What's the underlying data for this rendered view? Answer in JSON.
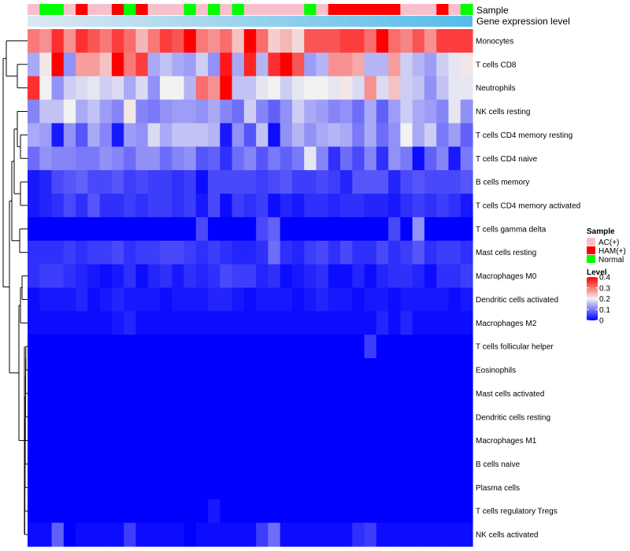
{
  "chart_data": {
    "type": "heatmap",
    "title": "",
    "legend_position": "right",
    "annotation_labels": {
      "sample": "Sample",
      "expression": "Gene expression level"
    },
    "rows": [
      "Monocytes",
      "T cells CD8",
      "Neutrophils",
      "NK cells resting",
      "T cells CD4 memory resting",
      "T cells CD4 naive",
      "B cells memory",
      "T cells CD4 memory activated",
      "T cells gamma delta",
      "Mast cells resting",
      "Macrophages M0",
      "Dendritic cells activated",
      "Macrophages M2",
      "T cells follicular helper",
      "Eosinophils",
      "Mast cells activated",
      "Dendritic cells resting",
      "Macrophages M1",
      "B cells naive",
      "Plasma cells",
      "T cells regulatory  Tregs",
      "NK cells activated"
    ],
    "sample_groups": [
      "AC",
      "Normal",
      "Normal",
      "AC",
      "HAM",
      "AC",
      "AC",
      "HAM",
      "Normal",
      "HAM",
      "AC",
      "AC",
      "AC",
      "Normal",
      "AC",
      "Normal",
      "AC",
      "Normal",
      "AC",
      "AC",
      "AC",
      "AC",
      "AC",
      "Normal",
      "AC",
      "HAM",
      "HAM",
      "HAM",
      "HAM",
      "HAM",
      "HAM",
      "AC",
      "AC",
      "AC",
      "HAM",
      "AC",
      "Normal"
    ],
    "expression_gradient": {
      "from": "#dce9f3",
      "to": "#55bde9"
    },
    "values": [
      [
        0.3,
        0.28,
        0.36,
        0.28,
        0.36,
        0.33,
        0.3,
        0.35,
        0.31,
        0.25,
        0.3,
        0.35,
        0.33,
        0.4,
        0.3,
        0.28,
        0.31,
        0.24,
        0.41,
        0.31,
        0.23,
        0.25,
        0.22,
        0.33,
        0.33,
        0.33,
        0.35,
        0.35,
        0.31,
        0.4,
        0.31,
        0.29,
        0.33,
        0.28,
        0.35,
        0.35,
        0.35
      ],
      [
        0.14,
        0.21,
        0.4,
        0.12,
        0.27,
        0.27,
        0.24,
        0.41,
        0.3,
        0.35,
        0.14,
        0.16,
        0.14,
        0.13,
        0.17,
        0.12,
        0.38,
        0.14,
        0.37,
        0.15,
        0.36,
        0.4,
        0.33,
        0.13,
        0.15,
        0.28,
        0.28,
        0.26,
        0.15,
        0.15,
        0.27,
        0.17,
        0.15,
        0.13,
        0.17,
        0.19,
        0.21
      ],
      [
        0.36,
        0.2,
        0.12,
        0.17,
        0.18,
        0.19,
        0.17,
        0.18,
        0.14,
        0.18,
        0.12,
        0.2,
        0.2,
        0.15,
        0.31,
        0.28,
        0.4,
        0.16,
        0.16,
        0.19,
        0.2,
        0.17,
        0.19,
        0.2,
        0.2,
        0.19,
        0.21,
        0.18,
        0.28,
        0.18,
        0.24,
        0.17,
        0.16,
        0.12,
        0.16,
        0.19,
        0.19
      ],
      [
        0.11,
        0.16,
        0.16,
        0.2,
        0.14,
        0.16,
        0.13,
        0.11,
        0.21,
        0.11,
        0.1,
        0.12,
        0.13,
        0.13,
        0.12,
        0.14,
        0.11,
        0.09,
        0.17,
        0.11,
        0.08,
        0.12,
        0.17,
        0.14,
        0.13,
        0.11,
        0.12,
        0.09,
        0.14,
        0.08,
        0.13,
        0.17,
        0.14,
        0.13,
        0.11,
        0.19,
        0.12
      ],
      [
        0.14,
        0.13,
        0.02,
        0.12,
        0.07,
        0.14,
        0.11,
        0.02,
        0.13,
        0.12,
        0.18,
        0.14,
        0.16,
        0.16,
        0.16,
        0.15,
        0.02,
        0.12,
        0.07,
        0.16,
        0.01,
        0.12,
        0.15,
        0.12,
        0.14,
        0.15,
        0.14,
        0.1,
        0.14,
        0.09,
        0.12,
        0.2,
        0.14,
        0.17,
        0.1,
        0.13,
        0.08
      ],
      [
        0.09,
        0.12,
        0.11,
        0.11,
        0.1,
        0.1,
        0.12,
        0.11,
        0.09,
        0.12,
        0.12,
        0.09,
        0.11,
        0.12,
        0.07,
        0.08,
        0.04,
        0.09,
        0.11,
        0.07,
        0.1,
        0.08,
        0.1,
        0.19,
        0.11,
        0.04,
        0.09,
        0.06,
        0.11,
        0.04,
        0.12,
        0.1,
        0.01,
        0.08,
        0.11,
        0.02,
        0.1
      ],
      [
        0.02,
        0.03,
        0.06,
        0.07,
        0.08,
        0.06,
        0.06,
        0.07,
        0.05,
        0.06,
        0.05,
        0.05,
        0.04,
        0.05,
        0.01,
        0.06,
        0.06,
        0.06,
        0.06,
        0.05,
        0.06,
        0.07,
        0.05,
        0.05,
        0.06,
        0.05,
        0.03,
        0.07,
        0.07,
        0.07,
        0.03,
        0.06,
        0.07,
        0.06,
        0.06,
        0.06,
        0.07
      ],
      [
        0.02,
        0.03,
        0.04,
        0.06,
        0.04,
        0.07,
        0.04,
        0.04,
        0.05,
        0.04,
        0.05,
        0.05,
        0.04,
        0.05,
        0.02,
        0.06,
        0.01,
        0.05,
        0.04,
        0.05,
        0.01,
        0.03,
        0.02,
        0.04,
        0.04,
        0.03,
        0.04,
        0.04,
        0.03,
        0.03,
        0.02,
        0.04,
        0.05,
        0.04,
        0.05,
        0.04,
        0.02
      ],
      [
        0.0,
        0.0,
        0.0,
        0.0,
        0.0,
        0.0,
        0.0,
        0.0,
        0.0,
        0.0,
        0.0,
        0.0,
        0.0,
        0.0,
        0.06,
        0.0,
        0.0,
        0.0,
        0.0,
        0.06,
        0.08,
        0.0,
        0.0,
        0.0,
        0.0,
        0.0,
        0.0,
        0.0,
        0.0,
        0.0,
        0.06,
        0.0,
        0.12,
        0.0,
        0.0,
        0.0,
        0.0
      ],
      [
        0.04,
        0.04,
        0.04,
        0.05,
        0.04,
        0.05,
        0.05,
        0.06,
        0.04,
        0.05,
        0.05,
        0.06,
        0.06,
        0.05,
        0.04,
        0.05,
        0.04,
        0.03,
        0.03,
        0.04,
        0.09,
        0.04,
        0.03,
        0.05,
        0.06,
        0.04,
        0.06,
        0.04,
        0.04,
        0.06,
        0.04,
        0.05,
        0.07,
        0.04,
        0.05,
        0.05,
        0.04
      ],
      [
        0.04,
        0.05,
        0.05,
        0.04,
        0.03,
        0.02,
        0.01,
        0.02,
        0.04,
        0.01,
        0.03,
        0.04,
        0.02,
        0.04,
        0.03,
        0.04,
        0.06,
        0.05,
        0.05,
        0.03,
        0.04,
        0.01,
        0.02,
        0.03,
        0.04,
        0.01,
        0.01,
        0.03,
        0.01,
        0.03,
        0.04,
        0.04,
        0.03,
        0.01,
        0.04,
        0.04,
        0.05
      ],
      [
        0.01,
        0.02,
        0.02,
        0.02,
        0.03,
        0.01,
        0.02,
        0.03,
        0.02,
        0.02,
        0.02,
        0.01,
        0.02,
        0.02,
        0.02,
        0.03,
        0.03,
        0.02,
        0.01,
        0.02,
        0.02,
        0.02,
        0.01,
        0.02,
        0.03,
        0.02,
        0.02,
        0.01,
        0.02,
        0.02,
        0.01,
        0.02,
        0.02,
        0.02,
        0.02,
        0.01,
        0.02
      ],
      [
        0.01,
        0.01,
        0.01,
        0.01,
        0.01,
        0.01,
        0.01,
        0.02,
        0.03,
        0.01,
        0.01,
        0.01,
        0.01,
        0.01,
        0.01,
        0.01,
        0.01,
        0.01,
        0.01,
        0.01,
        0.01,
        0.01,
        0.01,
        0.01,
        0.01,
        0.01,
        0.01,
        0.01,
        0.01,
        0.03,
        0.01,
        0.03,
        0.01,
        0.01,
        0.01,
        0.01,
        0.01
      ],
      [
        0.0,
        0.0,
        0.0,
        0.0,
        0.0,
        0.0,
        0.0,
        0.0,
        0.0,
        0.0,
        0.0,
        0.0,
        0.0,
        0.0,
        0.0,
        0.0,
        0.0,
        0.0,
        0.0,
        0.0,
        0.0,
        0.0,
        0.0,
        0.0,
        0.0,
        0.0,
        0.0,
        0.0,
        0.05,
        0.0,
        0.0,
        0.0,
        0.0,
        0.0,
        0.0,
        0.0,
        0.0
      ],
      [
        0.0,
        0.0,
        0.0,
        0.0,
        0.0,
        0.0,
        0.0,
        0.0,
        0.0,
        0.0,
        0.0,
        0.0,
        0.0,
        0.0,
        0.0,
        0.0,
        0.0,
        0.0,
        0.0,
        0.0,
        0.0,
        0.0,
        0.0,
        0.0,
        0.0,
        0.0,
        0.0,
        0.0,
        0.0,
        0.0,
        0.0,
        0.0,
        0.0,
        0.0,
        0.0,
        0.0,
        0.0
      ],
      [
        0.0,
        0.0,
        0.0,
        0.0,
        0.0,
        0.0,
        0.0,
        0.0,
        0.0,
        0.0,
        0.0,
        0.0,
        0.0,
        0.0,
        0.0,
        0.0,
        0.0,
        0.0,
        0.0,
        0.0,
        0.0,
        0.0,
        0.0,
        0.0,
        0.0,
        0.0,
        0.0,
        0.0,
        0.0,
        0.0,
        0.0,
        0.0,
        0.0,
        0.0,
        0.0,
        0.0,
        0.0
      ],
      [
        0.0,
        0.0,
        0.0,
        0.0,
        0.0,
        0.0,
        0.0,
        0.0,
        0.0,
        0.0,
        0.0,
        0.0,
        0.0,
        0.0,
        0.0,
        0.0,
        0.0,
        0.0,
        0.0,
        0.0,
        0.0,
        0.0,
        0.0,
        0.0,
        0.0,
        0.0,
        0.0,
        0.0,
        0.0,
        0.0,
        0.0,
        0.0,
        0.0,
        0.0,
        0.0,
        0.0,
        0.0
      ],
      [
        0.0,
        0.0,
        0.0,
        0.0,
        0.0,
        0.0,
        0.0,
        0.0,
        0.0,
        0.0,
        0.0,
        0.0,
        0.0,
        0.0,
        0.0,
        0.0,
        0.0,
        0.0,
        0.0,
        0.0,
        0.0,
        0.0,
        0.0,
        0.0,
        0.0,
        0.0,
        0.0,
        0.0,
        0.0,
        0.0,
        0.0,
        0.0,
        0.0,
        0.0,
        0.0,
        0.0,
        0.0
      ],
      [
        0.0,
        0.0,
        0.0,
        0.0,
        0.0,
        0.0,
        0.0,
        0.0,
        0.0,
        0.0,
        0.0,
        0.0,
        0.0,
        0.0,
        0.0,
        0.0,
        0.0,
        0.0,
        0.0,
        0.0,
        0.0,
        0.0,
        0.0,
        0.0,
        0.0,
        0.0,
        0.0,
        0.0,
        0.0,
        0.0,
        0.0,
        0.0,
        0.0,
        0.0,
        0.0,
        0.0,
        0.0
      ],
      [
        0.0,
        0.0,
        0.0,
        0.0,
        0.0,
        0.0,
        0.0,
        0.0,
        0.0,
        0.0,
        0.0,
        0.0,
        0.0,
        0.0,
        0.0,
        0.0,
        0.0,
        0.0,
        0.0,
        0.0,
        0.0,
        0.0,
        0.0,
        0.0,
        0.0,
        0.0,
        0.0,
        0.0,
        0.0,
        0.0,
        0.0,
        0.0,
        0.0,
        0.0,
        0.0,
        0.0,
        0.0
      ],
      [
        0.0,
        0.0,
        0.0,
        0.0,
        0.0,
        0.0,
        0.0,
        0.0,
        0.0,
        0.0,
        0.0,
        0.0,
        0.0,
        0.0,
        0.0,
        0.02,
        0.0,
        0.0,
        0.0,
        0.0,
        0.0,
        0.0,
        0.0,
        0.0,
        0.0,
        0.0,
        0.0,
        0.0,
        0.0,
        0.0,
        0.0,
        0.0,
        0.0,
        0.0,
        0.0,
        0.0,
        0.0
      ],
      [
        0.01,
        0.01,
        0.08,
        0.0,
        0.01,
        0.01,
        0.01,
        0.01,
        0.05,
        0.01,
        0.01,
        0.01,
        0.01,
        0.0,
        0.01,
        0.01,
        0.01,
        0.01,
        0.01,
        0.05,
        0.09,
        0.01,
        0.01,
        0.01,
        0.01,
        0.01,
        0.01,
        0.04,
        0.05,
        0.01,
        0.01,
        0.01,
        0.01,
        0.01,
        0.01,
        0.01,
        0.01
      ]
    ],
    "legend": {
      "sample_title": "Sample",
      "sample_entries": [
        {
          "key": "AC",
          "label": "AC(+)",
          "color": "#f8c0cb"
        },
        {
          "key": "HAM",
          "label": "HAM(+)",
          "color": "#ff0000"
        },
        {
          "key": "Normal",
          "label": "Normal",
          "color": "#00ff00"
        }
      ],
      "level_title": "Level",
      "level_ticks": [
        "0.4",
        "0.3",
        "0.2",
        "0.1",
        "0"
      ],
      "level_range": [
        0,
        0.4
      ]
    },
    "color_scale": {
      "low": "#0000ff",
      "mid": "#f2f2f2",
      "high": "#ff0000",
      "midpoint": 0.2
    }
  }
}
